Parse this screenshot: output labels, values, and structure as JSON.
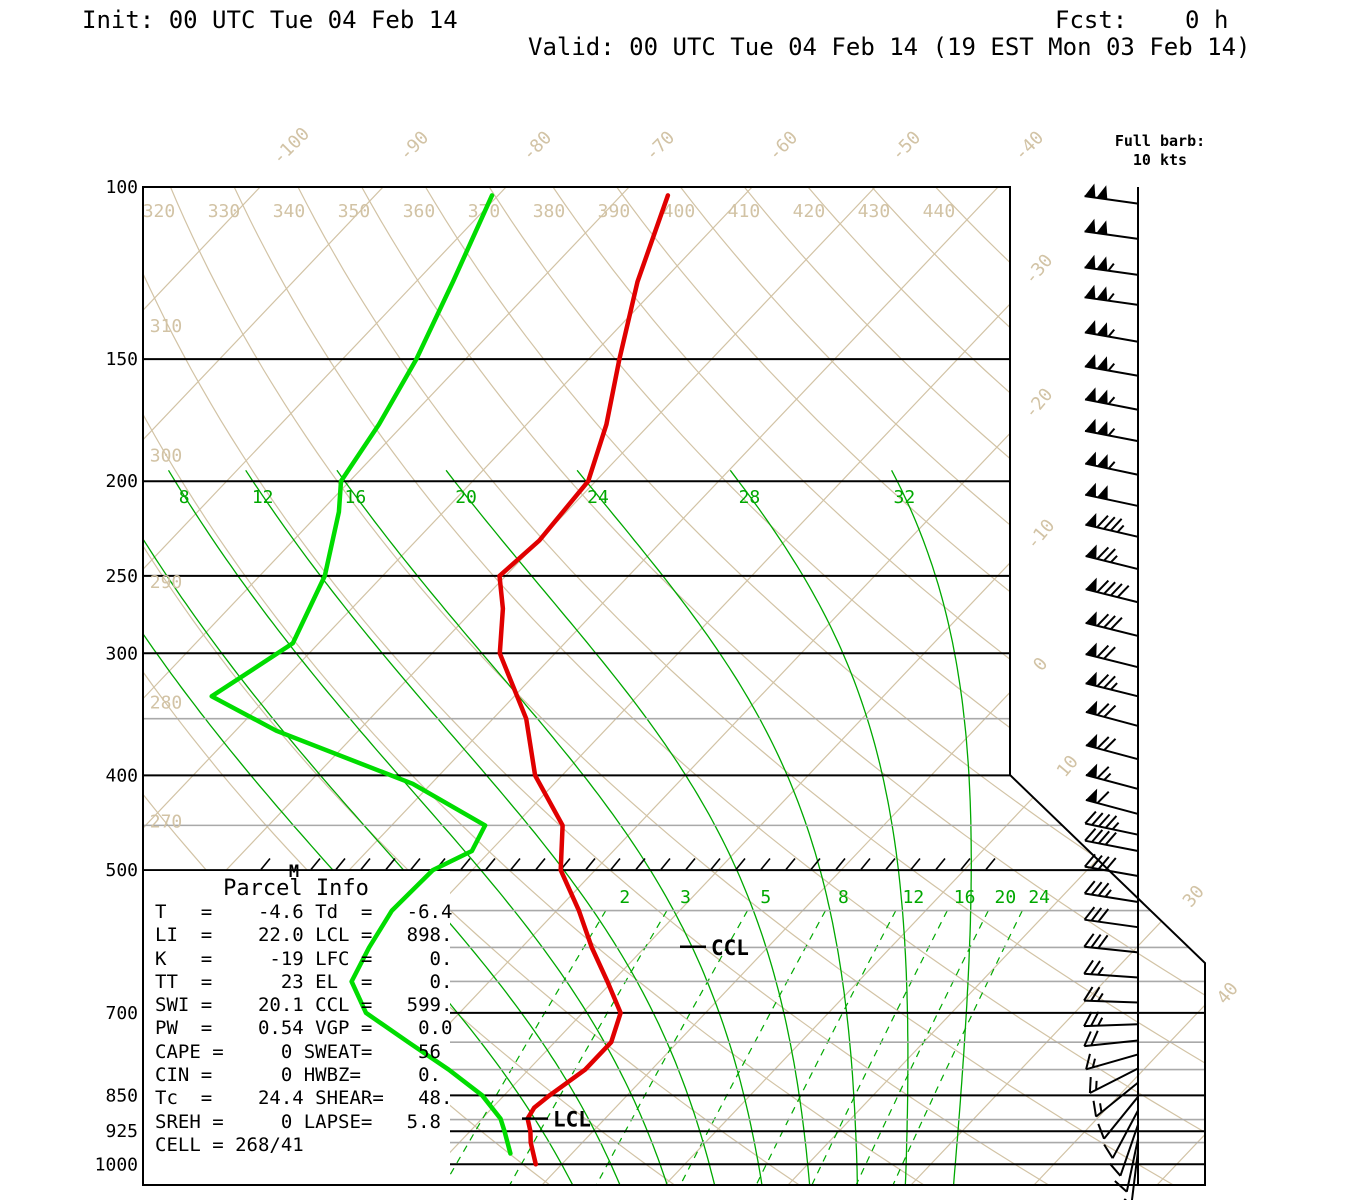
{
  "header": {
    "init_label": "Init: 00 UTC Tue 04 Feb 14",
    "fcst_label": "Fcst:    0 h",
    "valid_label": "Valid: 00 UTC Tue 04 Feb 14 (19 EST Mon 03 Feb 14)"
  },
  "barb_legend": {
    "line1": "Full barb:",
    "line2": "10 kts"
  },
  "parcel_info": {
    "title": "Parcel Info",
    "rows": [
      "T   =    -4.6 Td  =   -6.4",
      "LI  =    22.0 LCL =   898.",
      "K   =     -19 LFC =     0.",
      "TT  =      23 EL  =     0.",
      "SWI =    20.1 CCL =   599.",
      "PW  =    0.54 VGP =    0.0",
      "CAPE =     0 SWEAT=    56",
      "CIN =      0 HWBZ=     0.",
      "Tc  =    24.4 SHEAR=   48.",
      "SREH =     0 LAPSE=   5.8",
      "CELL = 268/41"
    ]
  },
  "markers": {
    "m": "M",
    "ccl": "CCL",
    "lcl": "LCL"
  },
  "colors": {
    "tan": "#d2c3a5",
    "thin_green": "#00a800",
    "dewpoint_green": "#00dc00",
    "temperature_red": "#e00000",
    "minor_gray": "#a9a9a9",
    "black": "#000000"
  },
  "chart_data": {
    "type": "skewt-log-p",
    "pressure_major": [
      100,
      150,
      200,
      250,
      300,
      400,
      500,
      700,
      850,
      925,
      1000
    ],
    "pressure_minor": [
      350,
      450,
      550,
      600,
      650,
      750,
      800,
      900,
      950
    ],
    "isotherms_c": {
      "all": [
        -110,
        -100,
        -90,
        -80,
        -70,
        -60,
        -50,
        -40,
        -30,
        -20,
        -10,
        0,
        10,
        20,
        30,
        40,
        50
      ],
      "top_labels": [
        -100,
        -90,
        -80,
        -70,
        -60,
        -50,
        -40
      ],
      "right_labels": [
        -30,
        -20,
        -10,
        0,
        10,
        30,
        40
      ]
    },
    "dry_adiabats_k": {
      "all": [
        270,
        280,
        290,
        300,
        310,
        320,
        330,
        340,
        350,
        360,
        370,
        380,
        390,
        400,
        410,
        420,
        430,
        440
      ],
      "top_labels": [
        320,
        330,
        340,
        350,
        360,
        370,
        380,
        390,
        400,
        410,
        420,
        430,
        440
      ],
      "left_labels": [
        270,
        280,
        290,
        300,
        310
      ]
    },
    "moist_adiabats_c": {
      "all": [
        0,
        4,
        8,
        12,
        16,
        20,
        24,
        28,
        32
      ],
      "labels": [
        8,
        12,
        16,
        20,
        24,
        28,
        32
      ]
    },
    "mixing_ratio_gkg": [
      2,
      3,
      5,
      8,
      12,
      16,
      20,
      24
    ],
    "temperature_profile": [
      [
        102,
        -66.2
      ],
      [
        125,
        -62.0
      ],
      [
        150,
        -57.5
      ],
      [
        175,
        -53.5
      ],
      [
        200,
        -50.6
      ],
      [
        230,
        -50.0
      ],
      [
        250,
        -50.5
      ],
      [
        270,
        -47.7
      ],
      [
        300,
        -44.5
      ],
      [
        350,
        -37.3
      ],
      [
        400,
        -32.2
      ],
      [
        450,
        -26.1
      ],
      [
        500,
        -22.8
      ],
      [
        550,
        -18.2
      ],
      [
        600,
        -14.3
      ],
      [
        650,
        -10.4
      ],
      [
        700,
        -6.9
      ],
      [
        750,
        -5.4
      ],
      [
        800,
        -5.4
      ],
      [
        850,
        -6.3
      ],
      [
        875,
        -6.6
      ],
      [
        898,
        -6.3
      ],
      [
        925,
        -5.1
      ],
      [
        950,
        -4.2
      ],
      [
        1000,
        -2.1
      ]
    ],
    "dewpoint_profile": [
      [
        102,
        -80.5
      ],
      [
        125,
        -77.0
      ],
      [
        150,
        -74.0
      ],
      [
        175,
        -72.0
      ],
      [
        200,
        -70.7
      ],
      [
        215,
        -68.5
      ],
      [
        250,
        -64.7
      ],
      [
        293,
        -62.1
      ],
      [
        332,
        -64.6
      ],
      [
        360,
        -56.7
      ],
      [
        408,
        -41.5
      ],
      [
        450,
        -32.4
      ],
      [
        478,
        -31.5
      ],
      [
        500,
        -33.2
      ],
      [
        550,
        -33.4
      ],
      [
        600,
        -32.4
      ],
      [
        650,
        -31.2
      ],
      [
        700,
        -27.6
      ],
      [
        750,
        -21.9
      ],
      [
        800,
        -16.5
      ],
      [
        850,
        -11.8
      ],
      [
        898,
        -8.5
      ],
      [
        925,
        -7.2
      ],
      [
        975,
        -5.0
      ]
    ],
    "wind_barbs_kts": [
      [
        104,
        278,
        100
      ],
      [
        113,
        278,
        100
      ],
      [
        123,
        278,
        105
      ],
      [
        132,
        278,
        105
      ],
      [
        144,
        280,
        105
      ],
      [
        156,
        280,
        105
      ],
      [
        169,
        281,
        105
      ],
      [
        182,
        281,
        105
      ],
      [
        197,
        282,
        105
      ],
      [
        212,
        282,
        100
      ],
      [
        228,
        283,
        85
      ],
      [
        246,
        284,
        75
      ],
      [
        266,
        284,
        90
      ],
      [
        288,
        284,
        80
      ],
      [
        310,
        284,
        70
      ],
      [
        332,
        284,
        75
      ],
      [
        356,
        285,
        70
      ],
      [
        385,
        285,
        70
      ],
      [
        413,
        285,
        65
      ],
      [
        438,
        285,
        60
      ],
      [
        460,
        282,
        45
      ],
      [
        478,
        281,
        40
      ],
      [
        507,
        280,
        40
      ],
      [
        539,
        279,
        35
      ],
      [
        572,
        278,
        30
      ],
      [
        607,
        276,
        30
      ],
      [
        644,
        274,
        25
      ],
      [
        683,
        272,
        25
      ],
      [
        719,
        268,
        25
      ],
      [
        747,
        264,
        20
      ],
      [
        772,
        254,
        15
      ],
      [
        798,
        243,
        15
      ],
      [
        825,
        231,
        15
      ],
      [
        853,
        219,
        10
      ],
      [
        881,
        208,
        10
      ],
      [
        911,
        199,
        10
      ],
      [
        942,
        192,
        10
      ],
      [
        969,
        187,
        5
      ]
    ],
    "lcl_pressure": 898,
    "ccl_pressure": 599
  }
}
